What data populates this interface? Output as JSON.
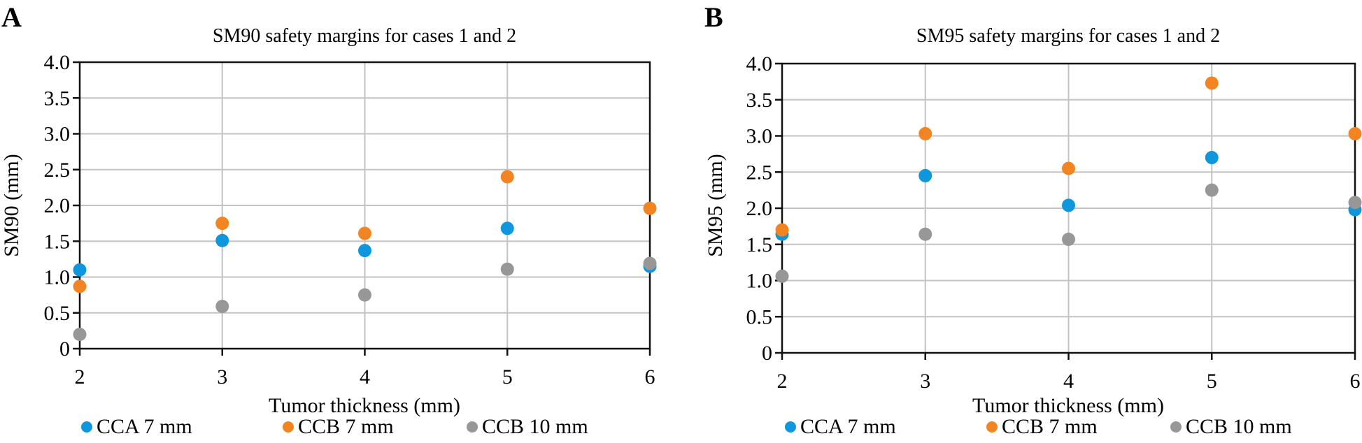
{
  "chart_data": [
    {
      "panel_label": "A",
      "type": "scatter",
      "title": "SM90 safety margins for cases 1 and 2",
      "xlabel": "Tumor thickness (mm)",
      "ylabel": "SM90 (mm)",
      "x": [
        2,
        3,
        4,
        5,
        6
      ],
      "xlim": [
        2,
        6
      ],
      "ylim": [
        0,
        4.0
      ],
      "xticks": [
        "2",
        "3",
        "4",
        "5",
        "6"
      ],
      "yticks": [
        "0",
        "0.5",
        "1.0",
        "1.5",
        "2.0",
        "2.5",
        "3.0",
        "3.5",
        "4.0"
      ],
      "grid": true,
      "legend_position": "bottom",
      "series": [
        {
          "name": "CCA 7 mm",
          "color": "#0f97dd",
          "values": [
            1.1,
            1.51,
            1.37,
            1.68,
            1.15
          ]
        },
        {
          "name": "CCB 7 mm",
          "color": "#f28522",
          "values": [
            0.87,
            1.75,
            1.61,
            2.4,
            1.96
          ]
        },
        {
          "name": "CCB 10 mm",
          "color": "#979797",
          "values": [
            0.2,
            0.59,
            0.75,
            1.11,
            1.19
          ]
        }
      ]
    },
    {
      "panel_label": "B",
      "type": "scatter",
      "title": "SM95 safety margins for cases 1 and 2",
      "xlabel": "Tumor thickness (mm)",
      "ylabel": "SM95 (mm)",
      "x": [
        2,
        3,
        4,
        5,
        6
      ],
      "xlim": [
        2,
        6
      ],
      "ylim": [
        0,
        4.0
      ],
      "xticks": [
        "2",
        "3",
        "4",
        "5",
        "6"
      ],
      "yticks": [
        "0",
        "0.5",
        "1.0",
        "1.5",
        "2.0",
        "2.5",
        "3.0",
        "3.5",
        "4.0"
      ],
      "grid": true,
      "legend_position": "bottom",
      "series": [
        {
          "name": "CCA 7 mm",
          "color": "#0f97dd",
          "values": [
            1.64,
            2.45,
            2.04,
            2.7,
            1.98
          ]
        },
        {
          "name": "CCB 7 mm",
          "color": "#f28522",
          "values": [
            1.7,
            3.03,
            2.55,
            3.73,
            3.03
          ]
        },
        {
          "name": "CCB 10 mm",
          "color": "#979797",
          "values": [
            1.06,
            1.64,
            1.57,
            2.25,
            2.08
          ]
        }
      ]
    }
  ]
}
